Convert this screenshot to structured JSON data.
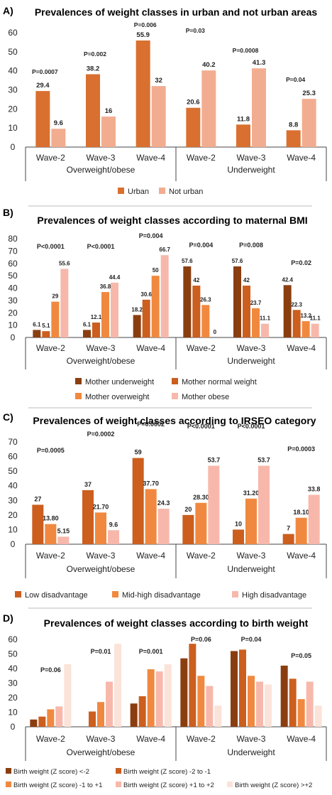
{
  "chart_data": [
    {
      "type": "bar",
      "panel_label": "A)",
      "title": "Prevalences of weight classes in urban and not urban areas",
      "categories": [
        "Wave-2",
        "Wave-3",
        "Wave-4",
        "Wave-2",
        "Wave-3",
        "Wave-4"
      ],
      "groups": [
        "Overweight/obese",
        "Underweight"
      ],
      "ylim": [
        0,
        60
      ],
      "yticks": [
        0,
        10,
        20,
        30,
        40,
        50,
        60
      ],
      "colors": [
        "#d9702f",
        "#f2ad91"
      ],
      "series": [
        {
          "name": "Urban",
          "values": [
            29.4,
            38.2,
            55.9,
            20.6,
            11.8,
            8.8
          ],
          "labels": [
            "29.4",
            "38.2",
            "55.9",
            "20.6",
            "11.8",
            "8.8"
          ]
        },
        {
          "name": "Not urban",
          "values": [
            9.6,
            16,
            32,
            40.2,
            41.3,
            25.3
          ],
          "labels": [
            "9.6",
            "16",
            "32",
            "40.2",
            "41.3",
            "25.3"
          ]
        }
      ],
      "pvalues": [
        "P=0.0007",
        "P=0.002",
        "P=0.006",
        "P=0.03",
        "P=0.0008",
        "P=0.04"
      ]
    },
    {
      "type": "bar",
      "panel_label": "B)",
      "title": "Prevalences of weight classes according to maternal BMI",
      "categories": [
        "Wave-2",
        "Wave-3",
        "Wave-4",
        "Wave-2",
        "Wave-3",
        "Wave-4"
      ],
      "groups": [
        "Overweight/obese",
        "Underweight"
      ],
      "ylim": [
        0,
        80
      ],
      "yticks": [
        0,
        10,
        20,
        30,
        40,
        50,
        60,
        70,
        80
      ],
      "colors": [
        "#8a3e10",
        "#cc5e1e",
        "#f0893f",
        "#f7b8ab"
      ],
      "series": [
        {
          "name": "Mother underweight",
          "values": [
            6.1,
            6.1,
            18.2,
            57.6,
            57.6,
            42.4
          ],
          "labels": [
            "6.1",
            "6.1",
            "18.2",
            "57.6",
            "57.6",
            "42.4"
          ]
        },
        {
          "name": "Mother normal weight",
          "values": [
            5.1,
            12.1,
            30.6,
            42,
            42,
            22.3
          ],
          "labels": [
            "5.1",
            "12.1",
            "30.6",
            "42",
            "42",
            "22.3"
          ]
        },
        {
          "name": "Mother overweight",
          "values": [
            29,
            36.8,
            50,
            26.3,
            23.7,
            13.2
          ],
          "labels": [
            "29",
            "36.8",
            "50",
            "26.3",
            "23.7",
            "13.2"
          ]
        },
        {
          "name": "Mother obese",
          "values": [
            55.6,
            44.4,
            66.7,
            0,
            11.1,
            11.1
          ],
          "labels": [
            "55.6",
            "44.4",
            "66.7",
            "0",
            "11.1",
            "11.1"
          ]
        }
      ],
      "pvalues": [
        "P<0.0001",
        "P<0.0001",
        "P=0.004",
        "P=0.004",
        "P=0.008",
        "P=0.02"
      ]
    },
    {
      "type": "bar",
      "panel_label": "C)",
      "title": "Prevalences of weight classes according to IRSEO category",
      "categories": [
        "Wave-2",
        "Wave-3",
        "Wave-4",
        "Wave-2",
        "Wave-3",
        "Wave-4"
      ],
      "groups": [
        "Overweight/obese",
        "Underweight"
      ],
      "ylim": [
        0,
        70
      ],
      "yticks": [
        0,
        10,
        20,
        30,
        40,
        50,
        60,
        70
      ],
      "colors": [
        "#cc5e1e",
        "#f0893f",
        "#f7b8ab"
      ],
      "series": [
        {
          "name": "Low disadvantage",
          "values": [
            27,
            37,
            59,
            20,
            10,
            7
          ],
          "labels": [
            "27",
            "37",
            "59",
            "20",
            "10",
            "7"
          ]
        },
        {
          "name": "Mid-high disadvantage",
          "values": [
            13.8,
            21.7,
            37.7,
            28.3,
            31.2,
            18.1
          ],
          "labels": [
            "13.80",
            "21.70",
            "37.70",
            "28.30",
            "31.20",
            "18.10"
          ]
        },
        {
          "name": "High disadvantage",
          "values": [
            5.15,
            9.6,
            24.3,
            53.7,
            53.7,
            33.8
          ],
          "labels": [
            "5.15",
            "9.6",
            "24.3",
            "53.7",
            "53.7",
            "33.8"
          ]
        }
      ],
      "pvalues": [
        "P=0.0005",
        "P=0.0002",
        "P=0.0002",
        "P<0.0001",
        "P<0.0001",
        "P=0.0003"
      ]
    },
    {
      "type": "bar",
      "panel_label": "D)",
      "title": "Prevalences of weight classes according to birth weight",
      "categories": [
        "Wave-2",
        "Wave-3",
        "Wave-4",
        "Wave-2",
        "Wave-3",
        "Wave-4"
      ],
      "groups": [
        "Overweight/obese",
        "Underweight"
      ],
      "ylim": [
        0,
        60
      ],
      "yticks": [
        0,
        10,
        20,
        30,
        40,
        50,
        60
      ],
      "colors": [
        "#8a3e10",
        "#cc5e1e",
        "#f0893f",
        "#f7b8ab",
        "#fbe3d9"
      ],
      "series": [
        {
          "name": "Birth weight (Z score) <-2",
          "values": [
            5,
            0,
            16,
            47,
            52,
            42
          ],
          "labels": []
        },
        {
          "name": "Birth weight (Z score) -2 to -1",
          "values": [
            7,
            10.5,
            21,
            57,
            53,
            33
          ],
          "labels": []
        },
        {
          "name": "Birth weight (Z score) -1 to +1",
          "values": [
            12,
            17,
            39.5,
            35,
            35,
            19
          ],
          "labels": []
        },
        {
          "name": "Birth weight (Z score) +1 to +2",
          "values": [
            14,
            31,
            38,
            28,
            31,
            31
          ],
          "labels": []
        },
        {
          "name": "Birth weight (Z score) >+2",
          "values": [
            43,
            57,
            43,
            14.5,
            29,
            14.5
          ],
          "labels": []
        }
      ],
      "pvalues": [
        "P=0.06",
        "P=0.01",
        "P=0.001",
        "P=0.06",
        "P=0.04",
        "P=0.05"
      ]
    }
  ]
}
